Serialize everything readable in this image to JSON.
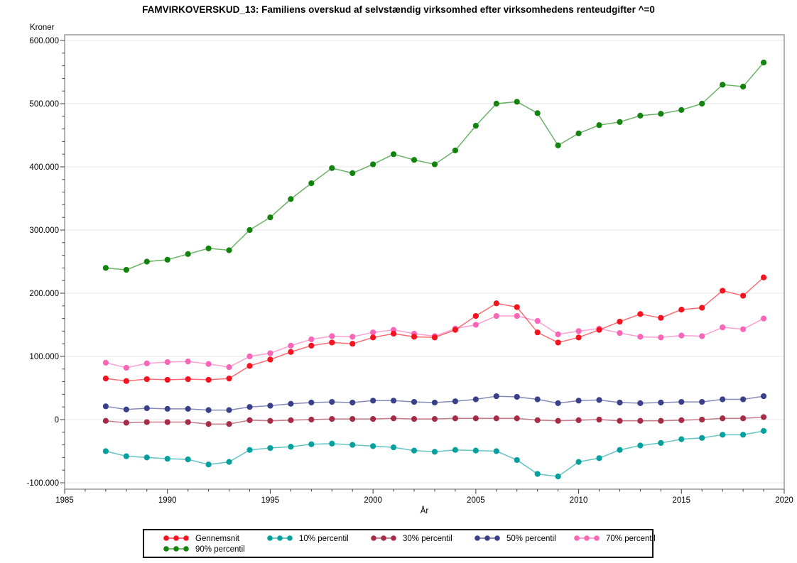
{
  "title": "FAMVIRKOVERSKUD_13: Familiens overskud af selvstændig virksomhed efter virksomhedens renteudgifter ^=0",
  "chart_data": {
    "type": "line",
    "xlabel": "År",
    "ylabel": "Kroner",
    "xlim": [
      1985,
      2020
    ],
    "ylim": [
      -100000,
      600000
    ],
    "grid": true,
    "legend_position": "bottom",
    "x_ticks": [
      1985,
      1990,
      1995,
      2000,
      2005,
      2010,
      2015,
      2020
    ],
    "y_tick_values": [
      600000,
      500000,
      400000,
      300000,
      200000,
      100000,
      0,
      -100000
    ],
    "y_tick_labels": [
      "600.000",
      "500.000",
      "400.000",
      "300.000",
      "200.000",
      "100.000",
      "0",
      "-100.000"
    ],
    "x": [
      1987,
      1988,
      1989,
      1990,
      1991,
      1992,
      1993,
      1994,
      1995,
      1996,
      1997,
      1998,
      1999,
      2000,
      2001,
      2002,
      2003,
      2004,
      2005,
      2006,
      2007,
      2008,
      2009,
      2010,
      2011,
      2012,
      2013,
      2014,
      2015,
      2016,
      2017,
      2018,
      2019
    ],
    "series": [
      {
        "name": "Gennemsnit",
        "color": "#f7121f",
        "values": [
          65000,
          61000,
          64000,
          63000,
          64000,
          63000,
          65000,
          85000,
          95000,
          107000,
          117000,
          122000,
          120000,
          130000,
          136000,
          131000,
          130000,
          142000,
          164000,
          184000,
          178000,
          138000,
          122000,
          130000,
          142000,
          155000,
          167000,
          161000,
          174000,
          177000,
          204000,
          196000,
          225000
        ]
      },
      {
        "name": "10% percentil",
        "color": "#03a09e",
        "values": [
          -50000,
          -58000,
          -60000,
          -62000,
          -63000,
          -71000,
          -67000,
          -48000,
          -45000,
          -43000,
          -39000,
          -38000,
          -40000,
          -42000,
          -44000,
          -49000,
          -51000,
          -48000,
          -49000,
          -50000,
          -64000,
          -86000,
          -90000,
          -67000,
          -61000,
          -48000,
          -41000,
          -37000,
          -31000,
          -29000,
          -24000,
          -24000,
          -18000
        ]
      },
      {
        "name": "30% percentil",
        "color": "#a52c44",
        "values": [
          -2000,
          -5000,
          -4000,
          -4000,
          -4000,
          -7000,
          -7000,
          -1000,
          -2000,
          -1000,
          0,
          1000,
          1000,
          1000,
          2000,
          1000,
          1000,
          2000,
          2000,
          2000,
          2000,
          -1000,
          -2000,
          -1000,
          0,
          -2000,
          -2000,
          -2000,
          -1000,
          0,
          2000,
          2000,
          4000
        ]
      },
      {
        "name": "50% percentil",
        "color": "#3a418a",
        "values": [
          21000,
          16000,
          18000,
          17000,
          17000,
          15000,
          15000,
          20000,
          22000,
          25000,
          27000,
          28000,
          27000,
          30000,
          30000,
          28000,
          27000,
          29000,
          32000,
          37000,
          36000,
          32000,
          26000,
          30000,
          31000,
          27000,
          26000,
          27000,
          28000,
          28000,
          32000,
          32000,
          37000
        ]
      },
      {
        "name": "70% percentil",
        "color": "#f966b7",
        "values": [
          90000,
          82000,
          89000,
          91000,
          92000,
          88000,
          83000,
          100000,
          105000,
          117000,
          127000,
          132000,
          131000,
          138000,
          142000,
          136000,
          132000,
          144000,
          150000,
          164000,
          164000,
          156000,
          135000,
          140000,
          144000,
          137000,
          131000,
          130000,
          133000,
          132000,
          146000,
          143000,
          160000
        ]
      },
      {
        "name": "90% percentil",
        "color": "#12830d",
        "values": [
          240000,
          237000,
          250000,
          253000,
          262000,
          271000,
          268000,
          300000,
          320000,
          349000,
          374000,
          398000,
          390000,
          404000,
          420000,
          411000,
          404000,
          426000,
          465000,
          500000,
          503000,
          485000,
          434000,
          453000,
          466000,
          471000,
          481000,
          484000,
          490000,
          500000,
          530000,
          527000,
          565000
        ]
      }
    ]
  }
}
